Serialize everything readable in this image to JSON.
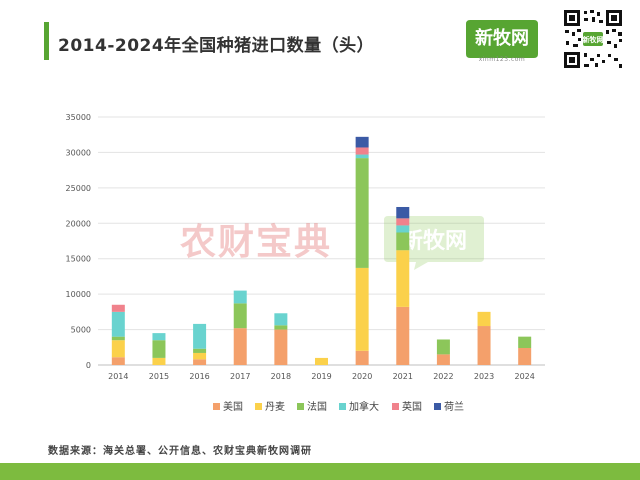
{
  "title": "2014-2024年全国种猪进口数量（头）",
  "logo": {
    "text": "新牧网",
    "url": "xinm123.com"
  },
  "qr": {
    "label": "新牧网"
  },
  "watermark": {
    "brand": "农财宝典",
    "logo": "新牧网"
  },
  "source": "数据来源：海关总署、公开信息、农财宝典新牧网调研",
  "colors": {
    "accent": "#57a532",
    "footer": "#7dbb3f"
  },
  "chart_data": {
    "type": "bar",
    "stacked": true,
    "categories": [
      "2014",
      "2015",
      "2016",
      "2017",
      "2018",
      "2019",
      "2020",
      "2021",
      "2022",
      "2023",
      "2024"
    ],
    "series": [
      {
        "name": "美国",
        "color": "#f4a06b",
        "values": [
          1100,
          0,
          800,
          5200,
          5000,
          0,
          2000,
          8200,
          1500,
          5500,
          2400
        ]
      },
      {
        "name": "丹麦",
        "color": "#fbd14b",
        "values": [
          2400,
          1000,
          900,
          0,
          0,
          1000,
          11700,
          8000,
          0,
          2000,
          0
        ]
      },
      {
        "name": "法国",
        "color": "#8cc65a",
        "values": [
          500,
          2500,
          600,
          3500,
          600,
          0,
          15500,
          2500,
          2100,
          0,
          1600
        ]
      },
      {
        "name": "加拿大",
        "color": "#69d3cf",
        "values": [
          3500,
          1000,
          3500,
          1800,
          1700,
          0,
          500,
          1000,
          0,
          0,
          0
        ]
      },
      {
        "name": "英国",
        "color": "#f0828c",
        "values": [
          1000,
          0,
          0,
          0,
          0,
          0,
          1000,
          1000,
          0,
          0,
          0
        ]
      },
      {
        "name": "荷兰",
        "color": "#3b5aa5",
        "values": [
          0,
          0,
          0,
          0,
          0,
          0,
          1500,
          1600,
          0,
          0,
          0
        ]
      }
    ],
    "ylim": [
      0,
      35000
    ],
    "yticks": [
      0,
      5000,
      10000,
      15000,
      20000,
      25000,
      30000,
      35000
    ],
    "grid": true,
    "legend": "bottom"
  }
}
